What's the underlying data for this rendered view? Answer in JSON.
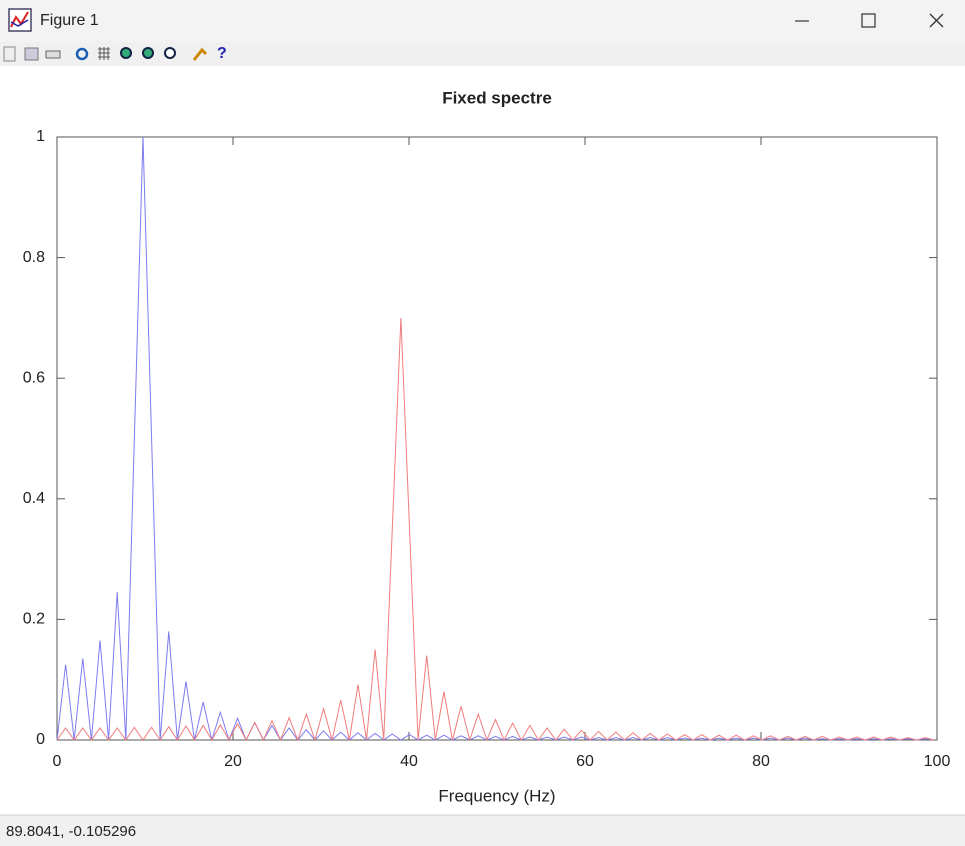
{
  "window": {
    "title": "Figure 1",
    "status": "89.8041, -0.105296"
  },
  "chart_data": {
    "type": "line",
    "title": "Fixed spectre",
    "x_label": "Frequency (Hz)",
    "x": [
      0,
      0.98,
      1.95,
      2.93,
      3.91,
      4.89,
      5.86,
      6.84,
      7.82,
      8.79,
      9.77,
      10.75,
      11.72,
      12.7,
      13.68,
      14.66,
      15.63,
      16.61,
      17.59,
      18.56,
      19.54,
      20.52,
      21.49,
      22.47,
      23.45,
      24.43,
      25.4,
      26.38,
      27.36,
      28.33,
      29.31,
      30.29,
      31.26,
      32.24,
      33.22,
      34.2,
      35.17,
      36.15,
      37.13,
      38.1,
      39.08,
      40.06,
      41.03,
      42.01,
      42.99,
      43.97,
      44.94,
      45.92,
      46.9,
      47.87,
      48.85,
      49.83,
      50.8,
      51.78,
      52.76,
      53.74,
      54.71,
      55.69,
      56.67,
      57.64,
      58.62,
      59.6,
      60.57,
      61.55,
      62.53,
      63.51,
      64.48,
      65.46,
      66.44,
      67.41,
      68.39,
      69.37,
      70.34,
      71.32,
      72.3,
      73.28,
      74.25,
      75.23,
      76.21,
      77.18,
      78.16,
      79.14,
      80.11,
      81.09,
      82.07,
      83.05,
      84.02,
      85,
      85.98,
      86.95,
      87.93,
      88.91,
      89.88,
      90.86,
      91.84,
      92.82,
      93.79,
      94.77,
      95.75,
      96.72,
      97.7,
      98.68,
      99.65
    ],
    "series": [
      {
        "color": "#7b7bf0",
        "values": [
          0,
          0.125,
          0,
          0.135,
          0,
          0.165,
          0,
          0.245,
          0,
          0.5,
          1,
          0.5,
          0,
          0.18,
          0,
          0.097,
          0,
          0.063,
          0,
          0.046,
          0,
          0.036,
          0,
          0.029,
          0,
          0.024,
          0,
          0.02,
          0,
          0.017,
          0,
          0.015,
          0,
          0.013,
          0,
          0.012,
          0,
          0.011,
          0,
          0.01,
          0,
          0.009,
          0,
          0.008,
          0,
          0.008,
          0,
          0.007,
          0,
          0.007,
          0,
          0.006,
          0,
          0.006,
          0,
          0.005,
          0,
          0.005,
          0,
          0.005,
          0,
          0.005,
          0,
          0.004,
          0,
          0.004,
          0,
          0.004,
          0,
          0.004,
          0,
          0.004,
          0,
          0.003,
          0,
          0.003,
          0,
          0.003,
          0,
          0.003,
          0,
          0.003,
          0,
          0.003,
          0,
          0.003,
          0,
          0.003,
          0,
          0.002,
          0,
          0.002,
          0,
          0.002,
          0,
          0.002,
          0,
          0.002,
          0,
          0.002,
          0,
          0.002,
          0
        ]
      },
      {
        "color": "#f07b7b",
        "values": [
          0,
          0.02,
          0,
          0.02,
          0,
          0.02,
          0,
          0.02,
          0,
          0.021,
          0,
          0.021,
          0,
          0.022,
          0,
          0.023,
          0,
          0.024,
          0,
          0.025,
          0,
          0.027,
          0,
          0.029,
          0,
          0.032,
          0,
          0.037,
          0,
          0.043,
          0,
          0.052,
          0,
          0.066,
          0,
          0.092,
          0,
          0.15,
          0,
          0.35,
          0.7,
          0.35,
          0,
          0.14,
          0,
          0.08,
          0,
          0.056,
          0,
          0.043,
          0,
          0.034,
          0,
          0.028,
          0,
          0.024,
          0,
          0.02,
          0,
          0.018,
          0,
          0.016,
          0,
          0.014,
          0,
          0.013,
          0,
          0.012,
          0,
          0.011,
          0,
          0.01,
          0,
          0.009,
          0,
          0.009,
          0,
          0.008,
          0,
          0.008,
          0,
          0.007,
          0,
          0.007,
          0,
          0.006,
          0,
          0.006,
          0,
          0.006,
          0,
          0.005,
          0,
          0.005,
          0,
          0.005,
          0,
          0.005,
          0,
          0.004,
          0,
          0.004,
          0
        ]
      }
    ],
    "xlim": [
      0,
      100
    ],
    "xticks": [
      0,
      20,
      40,
      60,
      80,
      100
    ],
    "ylim": [
      0,
      1
    ],
    "yticks": [
      0,
      0.2,
      0.4,
      0.6,
      0.8,
      1
    ]
  }
}
